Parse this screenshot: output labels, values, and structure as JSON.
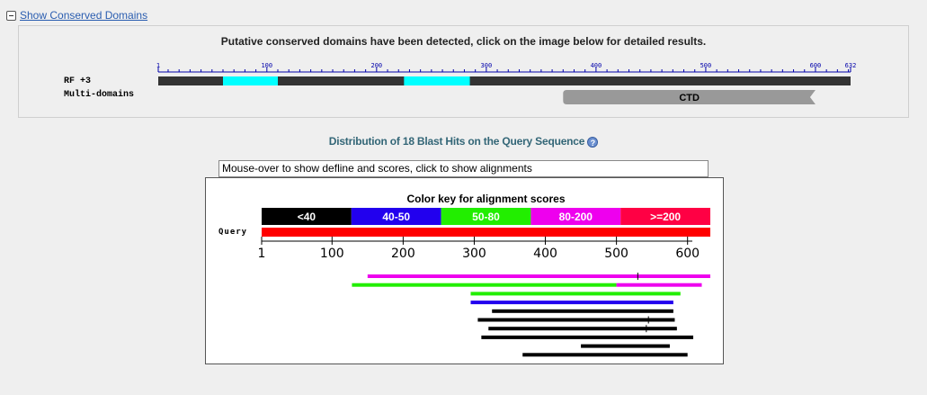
{
  "toggle": {
    "label": "Show Conserved Domains"
  },
  "conserved_domains": {
    "title": "Putative conserved domains have been detected, click on the image below for detailed results.",
    "rf_label": "RF +3",
    "multi_domains_label": "Multi-domains",
    "scale_labels": [
      "1",
      "100",
      "200",
      "300",
      "400",
      "500",
      "600",
      "632"
    ],
    "scale_values": [
      1,
      100,
      200,
      300,
      400,
      500,
      600,
      632
    ],
    "length": 632,
    "highlight_color": "#00ffff",
    "bar_color": "#333333",
    "highlights": [
      [
        60,
        110
      ],
      [
        225,
        285
      ]
    ],
    "domain": {
      "label": "CTD",
      "start": 370,
      "end": 600,
      "color": "#999999"
    }
  },
  "distribution": {
    "title": "Distribution of 18 Blast Hits on the Query Sequence",
    "help_icon": "question-icon",
    "info_text": "Mouse-over to show defline and scores, click to show alignments"
  },
  "chart_data": {
    "type": "alignment",
    "title": "Color key for alignment scores",
    "query_label": "Query",
    "color_key": [
      {
        "label": "<40",
        "color": "#000000"
      },
      {
        "label": "40-50",
        "color": "#2200ee"
      },
      {
        "label": "50-80",
        "color": "#22ee00"
      },
      {
        "label": "80-200",
        "color": "#ee00ee"
      },
      {
        "label": ">=200",
        "color": "#ff0044"
      }
    ],
    "query_color": "#ff0000",
    "axis_ticks": [
      1,
      100,
      200,
      300,
      400,
      500,
      600
    ],
    "query_length": 632,
    "hits": [
      {
        "segments": [
          {
            "start": 150,
            "end": 632,
            "color": "#ee00ee"
          }
        ],
        "gap_mark": 530
      },
      {
        "segments": [
          {
            "start": 128,
            "end": 500,
            "color": "#22ee00"
          },
          {
            "start": 500,
            "end": 620,
            "color": "#ee00ee"
          }
        ]
      },
      {
        "segments": [
          {
            "start": 295,
            "end": 590,
            "color": "#22ee00"
          }
        ]
      },
      {
        "segments": [
          {
            "start": 295,
            "end": 580,
            "color": "#2200ee"
          }
        ]
      },
      {
        "segments": [
          {
            "start": 325,
            "end": 580,
            "color": "#000000"
          }
        ]
      },
      {
        "segments": [
          {
            "start": 305,
            "end": 582,
            "color": "#000000"
          }
        ],
        "gap_mark": 545
      },
      {
        "segments": [
          {
            "start": 320,
            "end": 585,
            "color": "#000000"
          }
        ],
        "gap_mark": 542
      },
      {
        "segments": [
          {
            "start": 310,
            "end": 608,
            "color": "#000000"
          }
        ]
      },
      {
        "segments": [
          {
            "start": 450,
            "end": 575,
            "color": "#000000"
          }
        ]
      },
      {
        "segments": [
          {
            "start": 368,
            "end": 600,
            "color": "#000000"
          }
        ]
      }
    ]
  }
}
